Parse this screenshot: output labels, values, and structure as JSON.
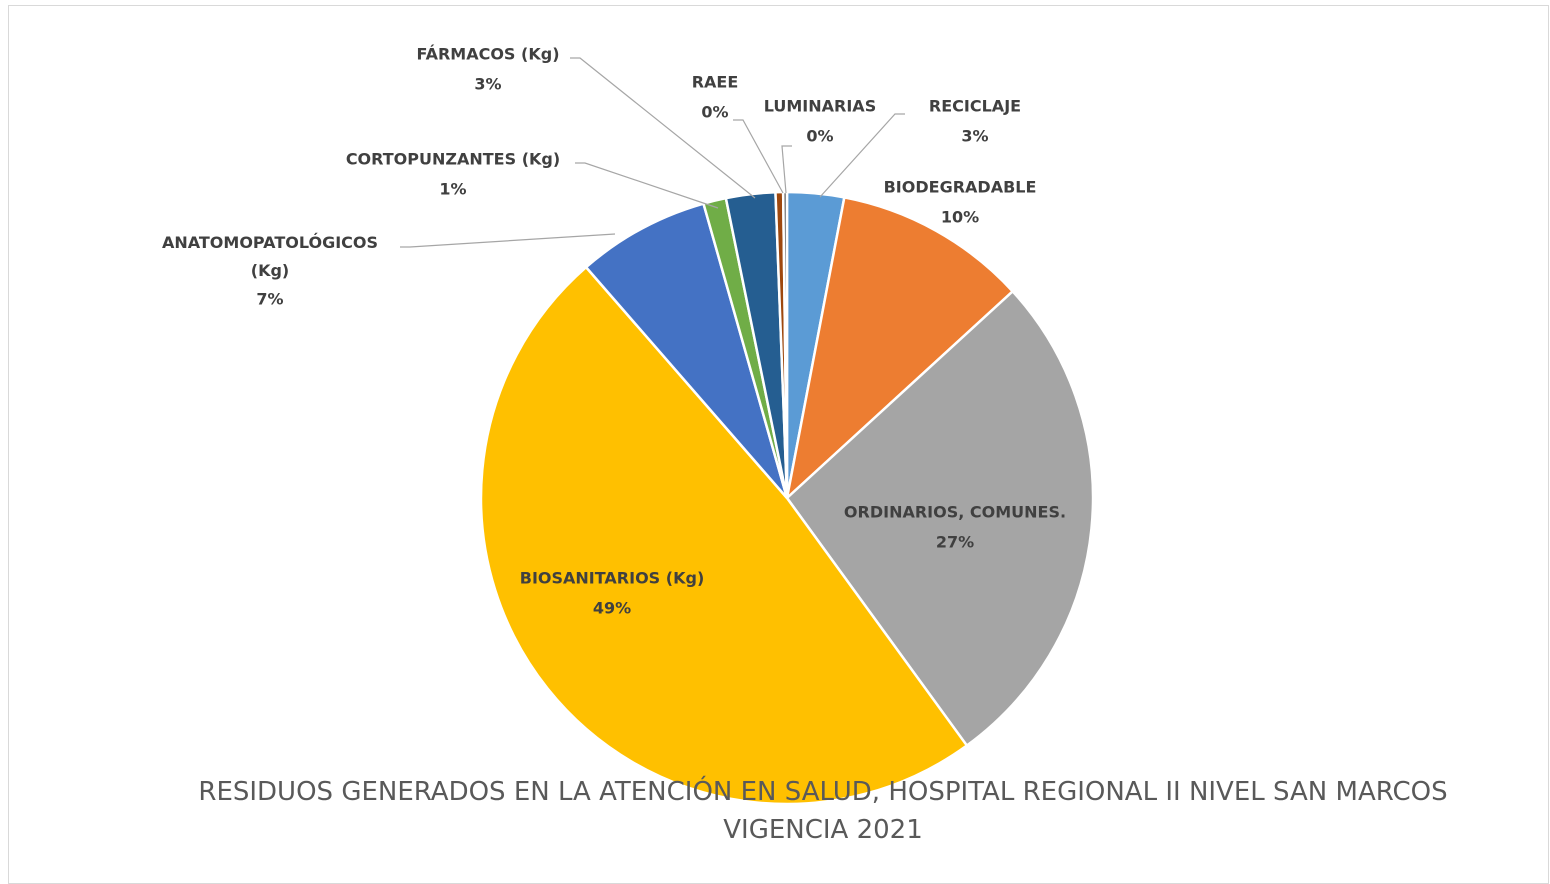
{
  "chart_data": {
    "type": "pie",
    "title": "RESIDUOS GENERADOS EN LA ATENCIÓN EN SALUD, HOSPITAL REGIONAL II NIVEL SAN MARCOS VIGENCIA 2021",
    "categories": [
      "RECICLAJE",
      "BIODEGRADABLE",
      "ORDINARIOS, COMUNES.",
      "BIOSANITARIOS (Kg)",
      "ANATOMOPATOLÓGICOS (Kg)",
      "CORTOPUNZANTES (Kg)",
      "FÁRMACOS (Kg)",
      "RAEE",
      "LUMINARIAS"
    ],
    "values": [
      3,
      10.2,
      26.8,
      48.6,
      7,
      1.2,
      2.6,
      0.4,
      0.2
    ],
    "value_labels": [
      "3%",
      "10%",
      "27%",
      "49%",
      "7%",
      "1%",
      "3%",
      "0%",
      "0%"
    ],
    "colors": [
      "#5b9bd5",
      "#ed7d31",
      "#a5a5a5",
      "#ffc000",
      "#4472c4",
      "#70ad47",
      "#255e91",
      "#9e480e",
      "#636363"
    ]
  }
}
